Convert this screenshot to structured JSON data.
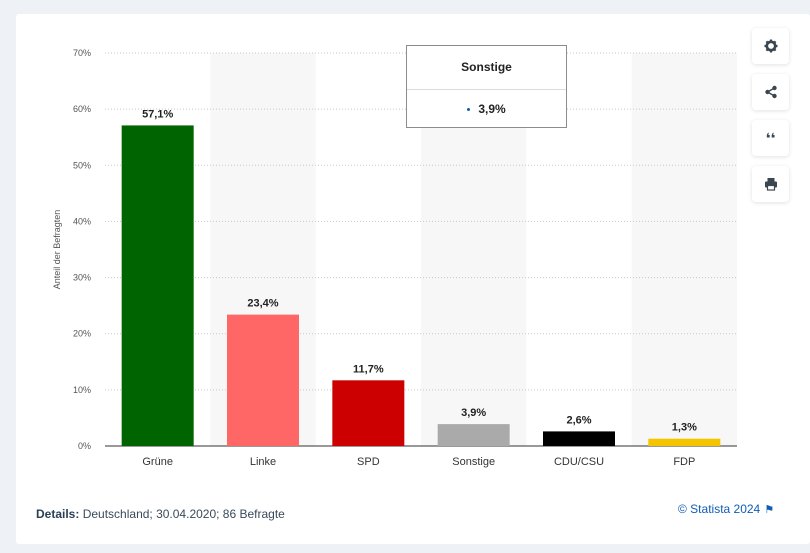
{
  "chart_data": {
    "type": "bar",
    "categories": [
      "Grüne",
      "Linke",
      "SPD",
      "Sonstige",
      "CDU/CSU",
      "FDP"
    ],
    "values": [
      57.1,
      23.4,
      11.7,
      3.9,
      2.6,
      1.3
    ],
    "value_labels": [
      "57,1%",
      "23,4%",
      "11,7%",
      "3,9%",
      "2,6%",
      "1,3%"
    ],
    "colors": [
      "#006400",
      "#ff6666",
      "#cc0000",
      "#aaaaaa",
      "#000000",
      "#f4c400"
    ],
    "ylabel": "Anteil der Befragten",
    "ylim": [
      0,
      70
    ],
    "yticks": [
      0,
      10,
      20,
      30,
      40,
      50,
      60,
      70
    ],
    "ytick_labels": [
      "0%",
      "10%",
      "20%",
      "30%",
      "40%",
      "50%",
      "60%",
      "70%"
    ],
    "grid": true,
    "legend": "none"
  },
  "tooltip": {
    "title": "Sonstige",
    "value": "3,9%",
    "dot_color": "#0f5db5"
  },
  "toolbar": {
    "icons": [
      "gear-icon",
      "share-icon",
      "quote-icon",
      "print-icon"
    ],
    "quote_glyph": "❛❛"
  },
  "footer": {
    "details_label": "Details:",
    "details_text": "Deutschland; 30.04.2020; 86 Befragte",
    "credit": "© Statista 2024"
  }
}
